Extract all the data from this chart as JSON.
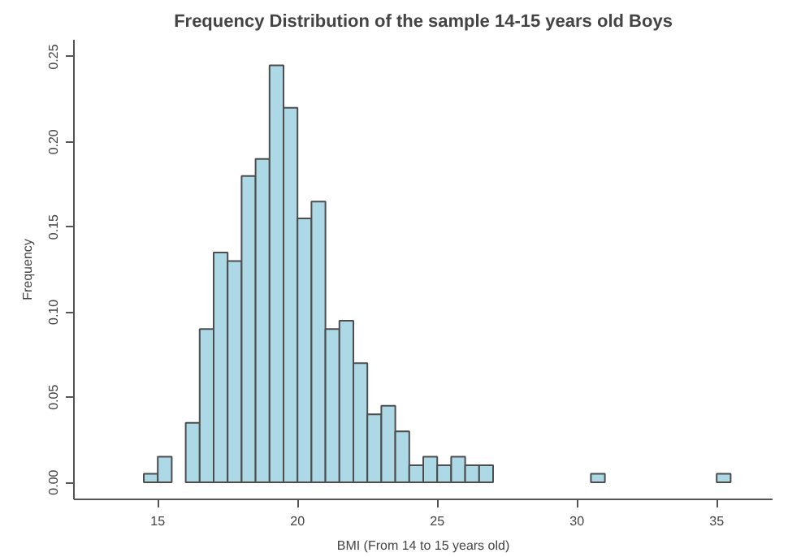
{
  "chart_data": {
    "type": "histogram",
    "title": "Frequency Distribution of the sample 14-15 years old Boys",
    "xlabel": "BMI (From 14 to 15 years old)",
    "ylabel": "Frequency",
    "bins": [
      14.5,
      15,
      15.5,
      16,
      16.5,
      17,
      17.5,
      18,
      18.5,
      19,
      19.5,
      20,
      20.5,
      21,
      21.5,
      22,
      22.5,
      23,
      23.5,
      24,
      24.5,
      25,
      25.5,
      26,
      26.5,
      27,
      27.5,
      28,
      28.5,
      29,
      29.5,
      30,
      30.5,
      31,
      31.5,
      32,
      32.5,
      33,
      33.5,
      34,
      34.5,
      35,
      35.5
    ],
    "values": [
      0.005,
      0.015,
      0,
      0.035,
      0.09,
      0.135,
      0.13,
      0.18,
      0.19,
      0.245,
      0.22,
      0.155,
      0.165,
      0.09,
      0.095,
      0.07,
      0.04,
      0.045,
      0.03,
      0.01,
      0.015,
      0.01,
      0.015,
      0.01,
      0.01,
      0,
      0,
      0,
      0,
      0,
      0,
      0,
      0.005,
      0,
      0,
      0,
      0,
      0,
      0,
      0,
      0,
      0.005
    ],
    "color": "#add8e6",
    "xlim": [
      12,
      37
    ],
    "ylim": [
      -0.01,
      0.26
    ],
    "xticks": [
      15,
      20,
      25,
      30,
      35
    ],
    "yticks": [
      {
        "value": 0,
        "label": "0.00"
      },
      {
        "value": 0.05,
        "label": "0.05"
      },
      {
        "value": 0.1,
        "label": "0.10"
      },
      {
        "value": 0.15,
        "label": "0.15"
      },
      {
        "value": 0.2,
        "label": "0.20"
      },
      {
        "value": 0.25,
        "label": "0.25"
      }
    ],
    "grid": false
  }
}
